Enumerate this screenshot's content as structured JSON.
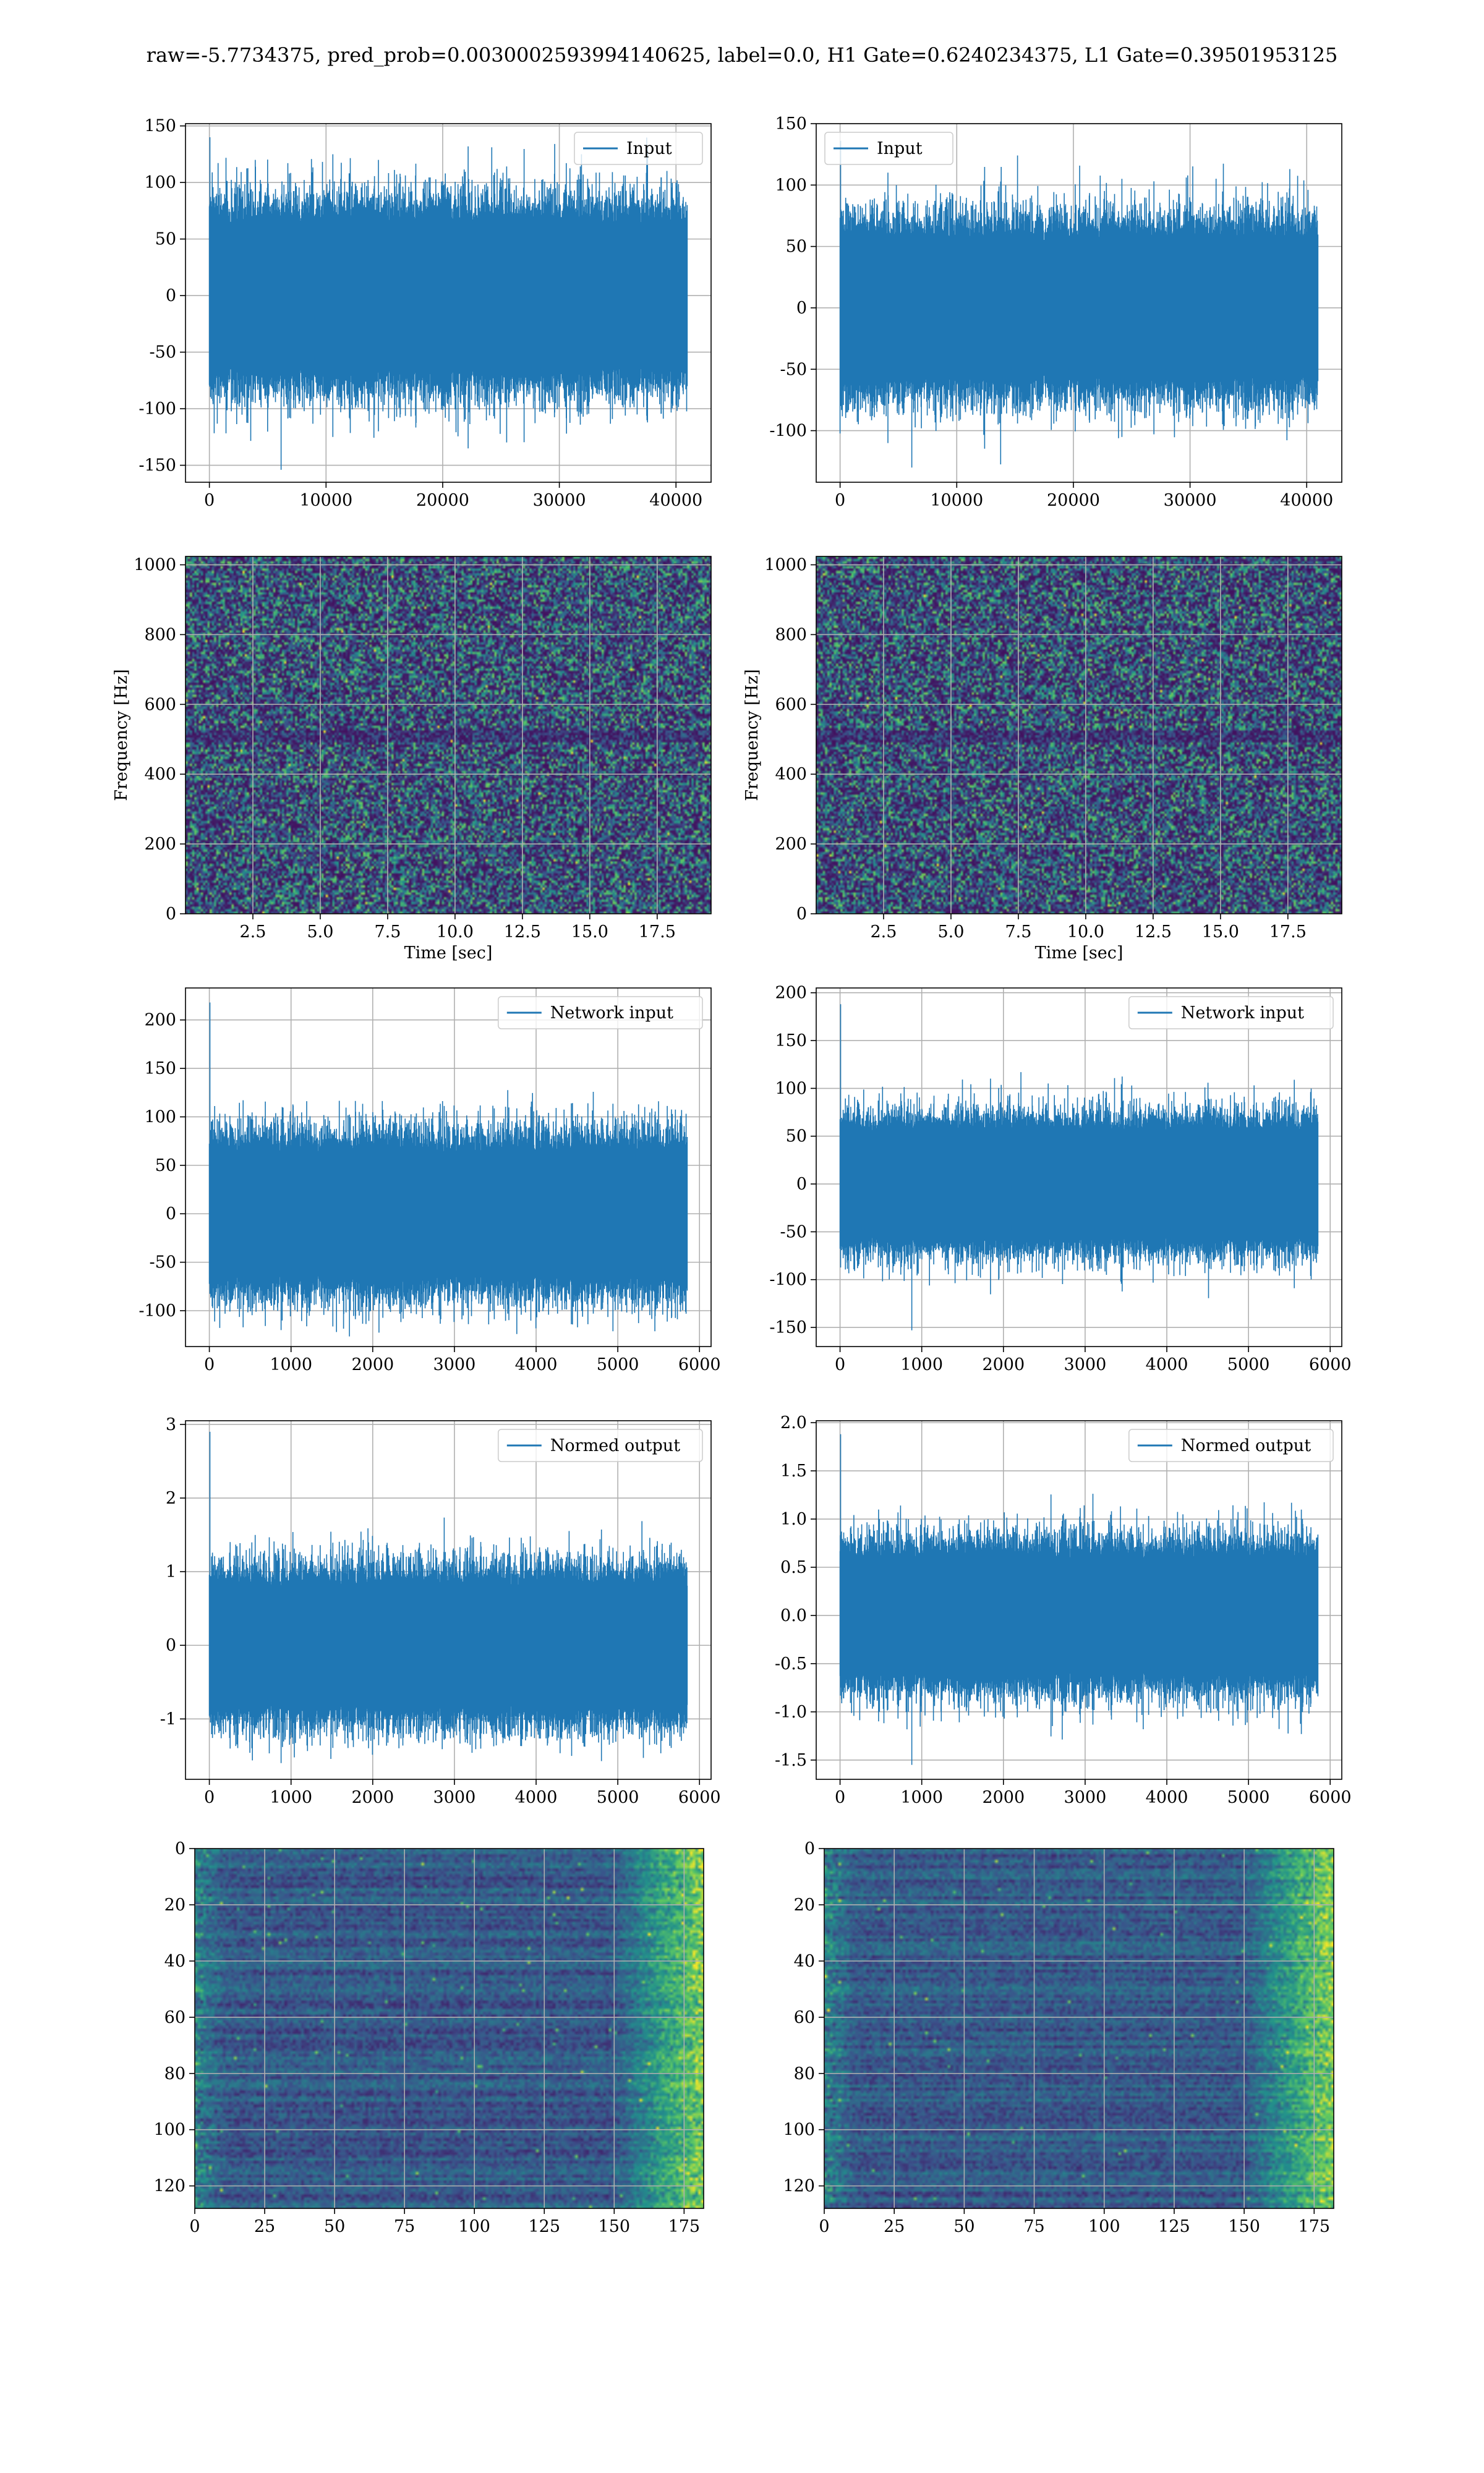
{
  "figure": {
    "title": "raw=-5.7734375, pred_prob=0.0030002593994140625, label=0.0, H1 Gate=0.6240234375, L1 Gate=0.39501953125"
  },
  "colors": {
    "line": "#1f77b4",
    "viridis": [
      "#440154",
      "#3b528b",
      "#21918c",
      "#5ec962",
      "#fde725"
    ]
  },
  "chart_data": [
    {
      "id": "input-h1",
      "type": "line",
      "legend": "Input",
      "legend_loc": "upper right",
      "n": 40960,
      "xlim": [
        -2048,
        43008
      ],
      "ylim": [
        -165,
        152
      ],
      "xticks": [
        0,
        10000,
        20000,
        30000,
        40000
      ],
      "yticks": [
        -150,
        -100,
        -50,
        0,
        50,
        100,
        150
      ],
      "noise_sigma": 30,
      "spike_max": 140,
      "spike_min": -154,
      "grid": true
    },
    {
      "id": "input-l1",
      "type": "line",
      "legend": "Input",
      "legend_loc": "upper left",
      "n": 40960,
      "xlim": [
        -2048,
        43008
      ],
      "ylim": [
        -142,
        150
      ],
      "xticks": [
        0,
        10000,
        20000,
        30000,
        40000
      ],
      "yticks": [
        -100,
        -50,
        0,
        50,
        100,
        150
      ],
      "noise_sigma": 26,
      "spike_max": 136,
      "spike_min": -130,
      "grid": true
    },
    {
      "id": "spec-h1",
      "type": "heatmap",
      "xlabel": "Time [sec]",
      "ylabel": "Frequency [Hz]",
      "xlim": [
        0,
        19.5
      ],
      "ylim": [
        0,
        1024
      ],
      "xticks": [
        2.5,
        5.0,
        7.5,
        10.0,
        12.5,
        15.0,
        17.5
      ],
      "yticks": [
        0,
        200,
        400,
        600,
        800,
        1000
      ],
      "colormap": "viridis",
      "grid": true
    },
    {
      "id": "spec-l1",
      "type": "heatmap",
      "xlabel": "Time [sec]",
      "ylabel": "Frequency [Hz]",
      "xlim": [
        0,
        19.5
      ],
      "ylim": [
        0,
        1024
      ],
      "xticks": [
        2.5,
        5.0,
        7.5,
        10.0,
        12.5,
        15.0,
        17.5
      ],
      "yticks": [
        0,
        200,
        400,
        600,
        800,
        1000
      ],
      "colormap": "viridis",
      "grid": true
    },
    {
      "id": "net-h1",
      "type": "line",
      "legend": "Network input",
      "legend_loc": "upper right",
      "n": 5850,
      "xlim": [
        -292,
        6142
      ],
      "ylim": [
        -137,
        233
      ],
      "xticks": [
        0,
        1000,
        2000,
        3000,
        4000,
        5000,
        6000
      ],
      "yticks": [
        -100,
        -50,
        0,
        50,
        100,
        150,
        200
      ],
      "noise_sigma": 30,
      "spike_max": 218,
      "spike_min": -120,
      "grid": true
    },
    {
      "id": "net-l1",
      "type": "line",
      "legend": "Network input",
      "legend_loc": "upper right",
      "n": 5850,
      "xlim": [
        -292,
        6142
      ],
      "ylim": [
        -170,
        205
      ],
      "xticks": [
        0,
        1000,
        2000,
        3000,
        4000,
        5000,
        6000
      ],
      "yticks": [
        -150,
        -100,
        -50,
        0,
        50,
        100,
        150,
        200
      ],
      "noise_sigma": 26,
      "spike_max": 188,
      "spike_min": -153,
      "grid": true
    },
    {
      "id": "norm-h1",
      "type": "line",
      "legend": "Normed output",
      "legend_loc": "upper right",
      "n": 5850,
      "xlim": [
        -292,
        6142
      ],
      "ylim": [
        -1.82,
        3.05
      ],
      "xticks": [
        0,
        1000,
        2000,
        3000,
        4000,
        5000,
        6000
      ],
      "yticks": [
        -1,
        0,
        1,
        2,
        3
      ],
      "noise_sigma": 0.38,
      "spike_max": 2.9,
      "spike_min": -1.6,
      "grid": true
    },
    {
      "id": "norm-l1",
      "type": "line",
      "legend": "Normed output",
      "legend_loc": "upper right",
      "n": 5850,
      "xlim": [
        -292,
        6142
      ],
      "ylim": [
        -1.7,
        2.02
      ],
      "xticks": [
        0,
        1000,
        2000,
        3000,
        4000,
        5000,
        6000
      ],
      "yticks": [
        -1.5,
        -1.0,
        -0.5,
        0.0,
        0.5,
        1.0,
        1.5,
        2.0
      ],
      "noise_sigma": 0.28,
      "spike_max": 1.88,
      "spike_min": -1.55,
      "grid": true
    },
    {
      "id": "feat-h1",
      "type": "heatmap",
      "rows": 128,
      "cols": 182,
      "xlim": [
        0,
        182
      ],
      "ylim": [
        128,
        0
      ],
      "xticks": [
        0,
        25,
        50,
        75,
        100,
        125,
        150,
        175
      ],
      "yticks": [
        0,
        20,
        40,
        60,
        80,
        100,
        120
      ],
      "colormap": "viridis",
      "grid": true
    },
    {
      "id": "feat-l1",
      "type": "heatmap",
      "rows": 128,
      "cols": 182,
      "xlim": [
        0,
        182
      ],
      "ylim": [
        128,
        0
      ],
      "xticks": [
        0,
        25,
        50,
        75,
        100,
        125,
        150,
        175
      ],
      "yticks": [
        0,
        20,
        40,
        60,
        80,
        100,
        120
      ],
      "colormap": "viridis",
      "grid": true
    }
  ]
}
